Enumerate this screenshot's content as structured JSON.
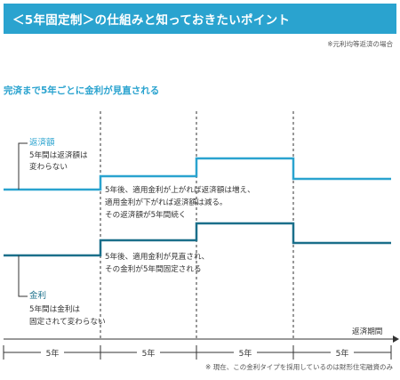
{
  "header": {
    "title": "＜5年固定制＞の仕組みと知っておきたいポイント",
    "note": "※元利均等返済の場合"
  },
  "subtitle": "完済まで5年ごとに金利が見直される",
  "repayment": {
    "label": "返済額",
    "desc": [
      "5年間は返済額は",
      "変わらない"
    ]
  },
  "rate": {
    "label": "金利",
    "desc": [
      "5年間は金利は",
      "固定されて変わらない"
    ]
  },
  "annotation_repayment": [
    "5年後、適用金利が上がれば返済額は増え、",
    "適用金利が下がれば返済額は減る。",
    "その返済額が5年間続く"
  ],
  "annotation_rate": [
    "5年後、適用金利が見直され、",
    "その金利が5年間固定される"
  ],
  "axis_label": "返済期間",
  "periods": [
    "5年",
    "5年",
    "5年",
    "5年"
  ],
  "footnote": "※ 現在、この金利タイプを採用しているのは財形住宅融資のみ",
  "colors": {
    "accent": "#2aa3cf",
    "rate_line": "#1a6f8a"
  }
}
